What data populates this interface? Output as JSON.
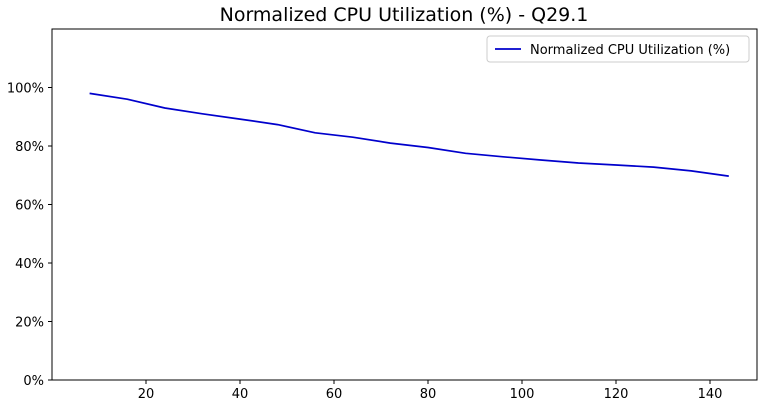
{
  "chart_data": {
    "type": "line",
    "title": "Normalized CPU Utilization (%) - Q29.1",
    "xlabel": "",
    "ylabel": "",
    "xlim": [
      0,
      150
    ],
    "ylim": [
      0,
      120
    ],
    "x_ticks": [
      20,
      40,
      60,
      80,
      100,
      120,
      140
    ],
    "y_ticks": [
      0,
      20,
      40,
      60,
      80,
      100
    ],
    "y_tick_format": "percent",
    "grid": false,
    "legend_position": "top-right",
    "series": [
      {
        "name": "Normalized CPU Utilization (%)",
        "color": "#0000cc",
        "x": [
          8,
          16,
          24,
          32,
          40,
          48,
          56,
          64,
          72,
          80,
          88,
          96,
          104,
          112,
          120,
          128,
          136,
          144
        ],
        "y": [
          98,
          96,
          93,
          91,
          89.2,
          87.3,
          84.5,
          83,
          81,
          79.5,
          77.5,
          76.3,
          75.2,
          74.2,
          73.5,
          72.8,
          71.5,
          69.7
        ]
      }
    ]
  }
}
